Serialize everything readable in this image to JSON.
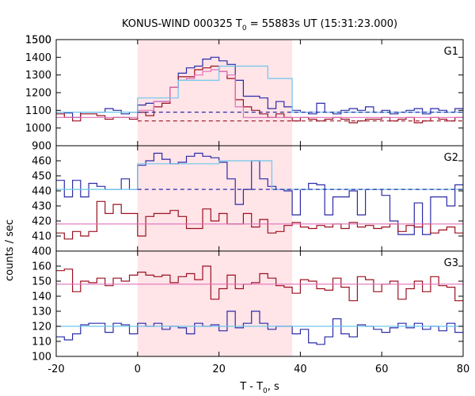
{
  "chart_data": {
    "type": "line",
    "title_prefix": "KONUS-WIND 000325 T",
    "title_sub": "0",
    "title_suffix": " = 55883s UT (15:31:23.000)",
    "ylabel": "counts / sec",
    "xlabel_prefix": "T - T",
    "xlabel_sub": "0",
    "xlabel_suffix": ", s",
    "xlim": [
      -20,
      80
    ],
    "xticks": [
      -20,
      0,
      20,
      40,
      60,
      80
    ],
    "shade": {
      "x0": 0,
      "x1": 38,
      "color": "#ffe4e8"
    },
    "colors": {
      "blue": "#2a2aa8",
      "red": "#9b1020",
      "cyan": "#6ec8ec",
      "pink": "#e070b8"
    },
    "panels": [
      {
        "label": "G1",
        "ylim": [
          900,
          1500
        ],
        "yticks": [
          900,
          1000,
          1100,
          1200,
          1300,
          1400,
          1500
        ],
        "show_top_tick": true,
        "series": [
          {
            "kind": "step",
            "color": "blue",
            "x0": -20,
            "dx": 2,
            "values": [
              1090,
              1085,
              1060,
              1090,
              1090,
              1090,
              1110,
              1100,
              1080,
              1090,
              1130,
              1140,
              1150,
              1150,
              1230,
              1310,
              1340,
              1350,
              1390,
              1400,
              1380,
              1360,
              1270,
              1180,
              1180,
              1170,
              1110,
              1150,
              1120,
              1100,
              1090,
              1080,
              1140,
              1090,
              1080,
              1100,
              1110,
              1100,
              1120,
              1090,
              1100,
              1080,
              1090,
              1100,
              1110,
              1080,
              1110,
              1100,
              1090,
              1110
            ]
          },
          {
            "kind": "step",
            "color": "red",
            "x0": -20,
            "dx": 2,
            "values": [
              1080,
              1060,
              1040,
              1080,
              1080,
              1070,
              1050,
              1060,
              1060,
              1050,
              1090,
              1070,
              1120,
              1140,
              1230,
              1290,
              1290,
              1330,
              1340,
              1350,
              1320,
              1280,
              1160,
              1120,
              1100,
              1080,
              1060,
              1080,
              1060,
              1040,
              1060,
              1050,
              1040,
              1050,
              1060,
              1050,
              1030,
              1040,
              1050,
              1050,
              1060,
              1040,
              1050,
              1060,
              1030,
              1040,
              1060,
              1050,
              1040,
              1060
            ]
          },
          {
            "kind": "step",
            "color": "pink",
            "x0": -20,
            "dx": 2,
            "values": [
              1060,
              1060,
              1060,
              1060,
              1060,
              1060,
              1060,
              1060,
              1060,
              1060,
              1100,
              1100,
              1150,
              1150,
              1230,
              1270,
              1280,
              1300,
              1320,
              1330,
              1320,
              1300,
              1120,
              1060,
              1060,
              1060,
              1060,
              1060,
              1060,
              1060,
              1060,
              1060,
              1060,
              1060,
              1060,
              1060,
              1060,
              1060,
              1060,
              1060,
              1060,
              1060,
              1060,
              1060,
              1060,
              1060,
              1060,
              1060,
              1060,
              1060
            ]
          },
          {
            "kind": "line",
            "color": "cyan",
            "dash": false,
            "points": [
              [
                -20,
                1090
              ],
              [
                0,
                1090
              ],
              [
                0,
                1170
              ],
              [
                10,
                1170
              ],
              [
                10,
                1270
              ],
              [
                20,
                1270
              ],
              [
                20,
                1350
              ],
              [
                32,
                1350
              ],
              [
                32,
                1280
              ],
              [
                38,
                1280
              ],
              [
                38,
                1090
              ],
              [
                80,
                1090
              ]
            ]
          },
          {
            "kind": "line",
            "color": "blue",
            "dash": true,
            "points": [
              [
                0,
                1090
              ],
              [
                80,
                1090
              ]
            ]
          },
          {
            "kind": "line",
            "color": "red",
            "dash": true,
            "points": [
              [
                0,
                1040
              ],
              [
                80,
                1040
              ]
            ]
          }
        ]
      },
      {
        "label": "G2",
        "ylim": [
          400,
          470
        ],
        "yticks": [
          400,
          410,
          420,
          430,
          440,
          450,
          460
        ],
        "show_top_tick": false,
        "series": [
          {
            "kind": "step",
            "color": "blue",
            "x0": -20,
            "dx": 2,
            "values": [
              447,
              436,
              447,
              436,
              445,
              443,
              441,
              441,
              448,
              441,
              457,
              460,
              465,
              461,
              458,
              459,
              463,
              465,
              463,
              462,
              459,
              448,
              431,
              441,
              460,
              448,
              443,
              441,
              440,
              424,
              441,
              445,
              444,
              424,
              436,
              436,
              440,
              424,
              441,
              441,
              437,
              420,
              411,
              411,
              432,
              411,
              436,
              436,
              430,
              444
            ]
          },
          {
            "kind": "step",
            "color": "red",
            "x0": -20,
            "dx": 2,
            "values": [
              412,
              408,
              413,
              410,
              413,
              433,
              425,
              431,
              425,
              425,
              410,
              423,
              425,
              425,
              427,
              423,
              415,
              415,
              428,
              420,
              425,
              418,
              418,
              425,
              416,
              421,
              412,
              413,
              417,
              419,
              416,
              415,
              417,
              416,
              418,
              415,
              419,
              416,
              417,
              415,
              416,
              418,
              413,
              417,
              416,
              418,
              412,
              414,
              416,
              412
            ]
          },
          {
            "kind": "line",
            "color": "pink",
            "dash": false,
            "points": [
              [
                -20,
                418
              ],
              [
                80,
                418
              ]
            ]
          },
          {
            "kind": "line",
            "color": "cyan",
            "dash": false,
            "points": [
              [
                -20,
                441
              ],
              [
                0,
                441
              ],
              [
                0,
                458
              ],
              [
                20,
                458
              ],
              [
                20,
                460
              ],
              [
                33,
                460
              ],
              [
                33,
                441
              ],
              [
                80,
                441
              ]
            ]
          },
          {
            "kind": "line",
            "color": "blue",
            "dash": true,
            "points": [
              [
                0,
                441
              ],
              [
                80,
                441
              ]
            ]
          }
        ]
      },
      {
        "label": "G3",
        "ylim": [
          100,
          170
        ],
        "yticks": [
          100,
          110,
          120,
          130,
          140,
          150,
          160
        ],
        "show_top_tick": false,
        "series": [
          {
            "kind": "step",
            "color": "red",
            "x0": -20,
            "dx": 2,
            "values": [
              157,
              158,
              143,
              150,
              149,
              152,
              147,
              152,
              150,
              154,
              156,
              154,
              153,
              154,
              149,
              153,
              155,
              151,
              160,
              138,
              145,
              154,
              145,
              148,
              149,
              155,
              152,
              147,
              146,
              142,
              151,
              150,
              145,
              144,
              152,
              146,
              137,
              153,
              151,
              143,
              148,
              150,
              138,
              145,
              150,
              143,
              153,
              147,
              146,
              137
            ]
          },
          {
            "kind": "step",
            "color": "blue",
            "x0": -20,
            "dx": 2,
            "values": [
              113,
              111,
              115,
              121,
              122,
              122,
              116,
              122,
              121,
              115,
              122,
              120,
              122,
              118,
              120,
              119,
              115,
              122,
              120,
              121,
              117,
              130,
              119,
              122,
              130,
              122,
              118,
              120,
              120,
              115,
              118,
              109,
              108,
              113,
              125,
              115,
              113,
              121,
              120,
              118,
              116,
              119,
              122,
              119,
              122,
              118,
              120,
              117,
              122,
              116
            ]
          },
          {
            "kind": "line",
            "color": "pink",
            "dash": false,
            "points": [
              [
                -20,
                148
              ],
              [
                80,
                148
              ]
            ]
          },
          {
            "kind": "line",
            "color": "cyan",
            "dash": false,
            "points": [
              [
                -20,
                120
              ],
              [
                80,
                120
              ]
            ]
          }
        ]
      }
    ]
  }
}
